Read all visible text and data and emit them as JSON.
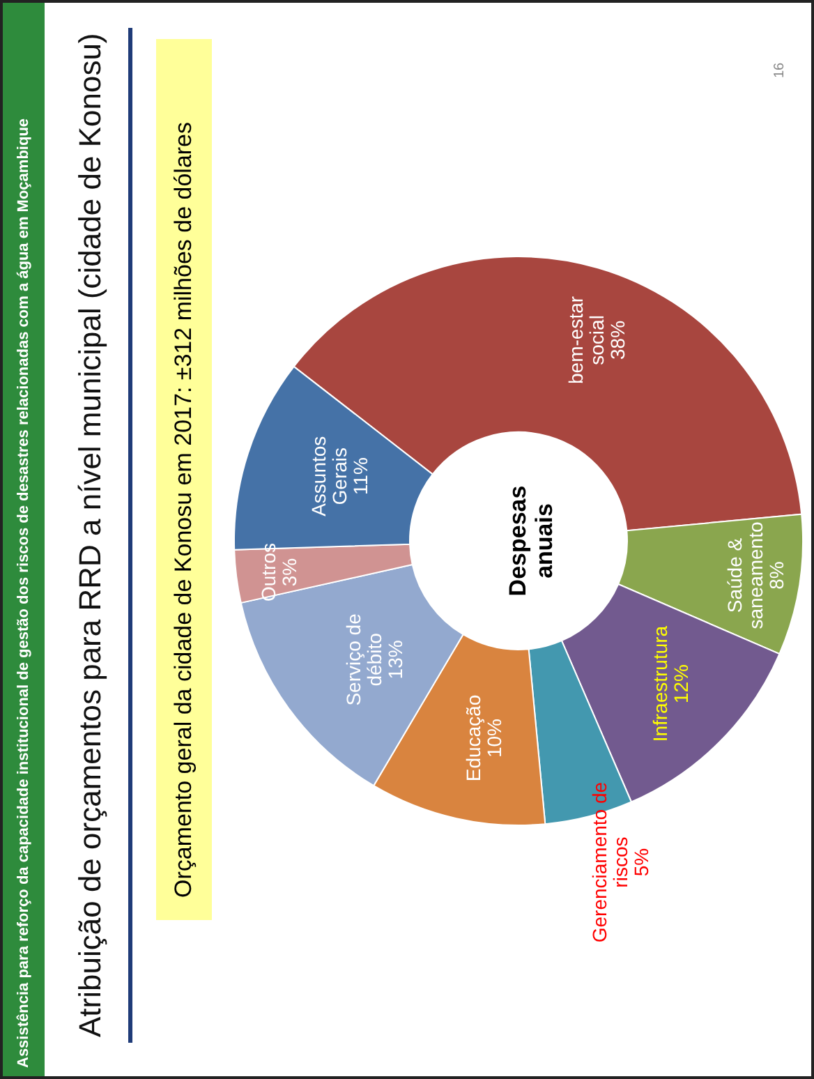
{
  "chart_data": {
    "type": "donut",
    "title": "Atribuição de orçamentos para RRD a nível municipal (cidade de Konosu)",
    "subtitle": "Orçamento geral da cidade de Konosu em 2017: ±312 milhões de dólares",
    "categories": [
      "bem-estar social",
      "Saúde & saneamento",
      "Infraestrutura",
      "Gerenciamento de riscos",
      "Educação",
      "Serviço de débito",
      "Outros",
      "Assuntos Gerais"
    ],
    "values": [
      38,
      8,
      12,
      5,
      10,
      13,
      3,
      11
    ],
    "value_labels": [
      "38%",
      "8%",
      "12%",
      "5%",
      "10%",
      "13%",
      "3%",
      "11%"
    ],
    "colors": [
      "#a8463f",
      "#8aa64e",
      "#725a8f",
      "#4398af",
      "#d9843f",
      "#93a9cf",
      "#d09392",
      "#4572a7"
    ],
    "annotations": [
      "Assistência para reforço da capacidade institucional de gestão dos riscos de desastres relacionadas com a água em Moçambique",
      "Despesas anuais",
      "16"
    ]
  }
}
